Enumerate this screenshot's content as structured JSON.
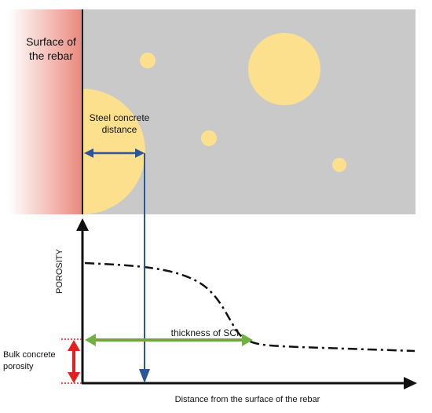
{
  "labels": {
    "rebar_surface": "Surface of the rebar",
    "steel_concrete_distance": "Steel concrete distance",
    "thickness_of_sci": "thickness of SCI",
    "bulk_concrete_porosity": "Bulk concrete porosity",
    "y_axis": "POROSITY",
    "x_axis": "Distance from the surface of the rebar"
  },
  "colors": {
    "concrete": "#c9c9c9",
    "void": "#fde08e",
    "rebar_fill": "#e9877b",
    "porosity_curve": "#111111",
    "steel_concrete_arrow": "#2e5597",
    "sci_arrow": "#72b043",
    "bulk_arrow": "#e81d1d"
  },
  "icons": {
    "x_axis_arrow": "arrowhead-right",
    "y_axis_arrow": "arrowhead-up"
  }
}
